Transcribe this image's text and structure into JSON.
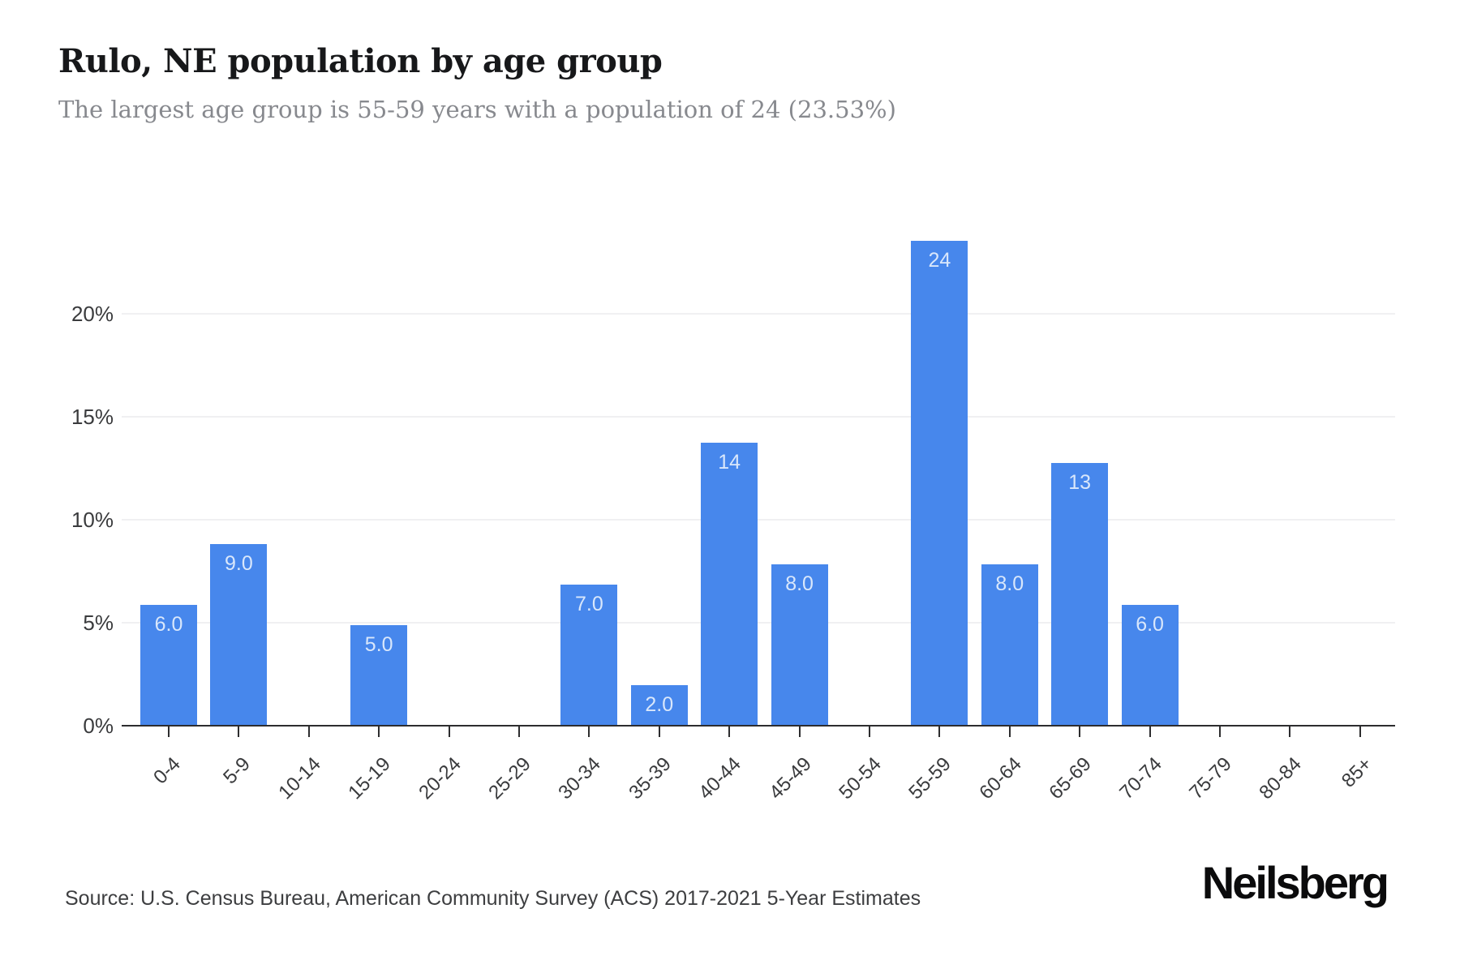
{
  "header": {
    "title": "Rulo, NE population by age group",
    "subtitle": "The largest age group is 55-59 years with a population of 24 (23.53%)"
  },
  "chart_data": {
    "type": "bar",
    "title": "Rulo, NE population by age group",
    "categories": [
      "0-4",
      "5-9",
      "10-14",
      "15-19",
      "20-24",
      "25-29",
      "30-34",
      "35-39",
      "40-44",
      "45-49",
      "50-54",
      "55-59",
      "60-64",
      "65-69",
      "70-74",
      "75-79",
      "80-84",
      "85+"
    ],
    "values": [
      6,
      9,
      0,
      5,
      0,
      0,
      7,
      2,
      14,
      8,
      0,
      24,
      8,
      13,
      6,
      0,
      0,
      0
    ],
    "bar_labels": [
      "6.0",
      "9.0",
      "",
      "5.0",
      "",
      "",
      "7.0",
      "2.0",
      "14",
      "8.0",
      "",
      "24",
      "8.0",
      "13",
      "6.0",
      "",
      "",
      ""
    ],
    "percents": [
      5.88,
      8.82,
      0,
      4.9,
      0,
      0,
      6.86,
      1.96,
      13.73,
      7.84,
      0,
      23.53,
      7.84,
      12.75,
      5.88,
      0,
      0,
      0
    ],
    "y_ticks": [
      "0%",
      "5%",
      "10%",
      "15%",
      "20%"
    ],
    "y_tick_values": [
      0,
      5,
      10,
      15,
      20
    ],
    "ylim": [
      0,
      24.2
    ],
    "xlabel": "",
    "ylabel": "",
    "grid": "horizontal",
    "legend": "none",
    "bar_color": "#4787ec",
    "bar_label_color": "#d9e7fb",
    "axis_color": "#2d2d2f",
    "gridline_color": "#f0f0f2"
  },
  "footer": {
    "source": "Source: U.S. Census Bureau, American Community Survey (ACS) 2017-2021 5-Year Estimates",
    "brand": "Neilsberg"
  }
}
